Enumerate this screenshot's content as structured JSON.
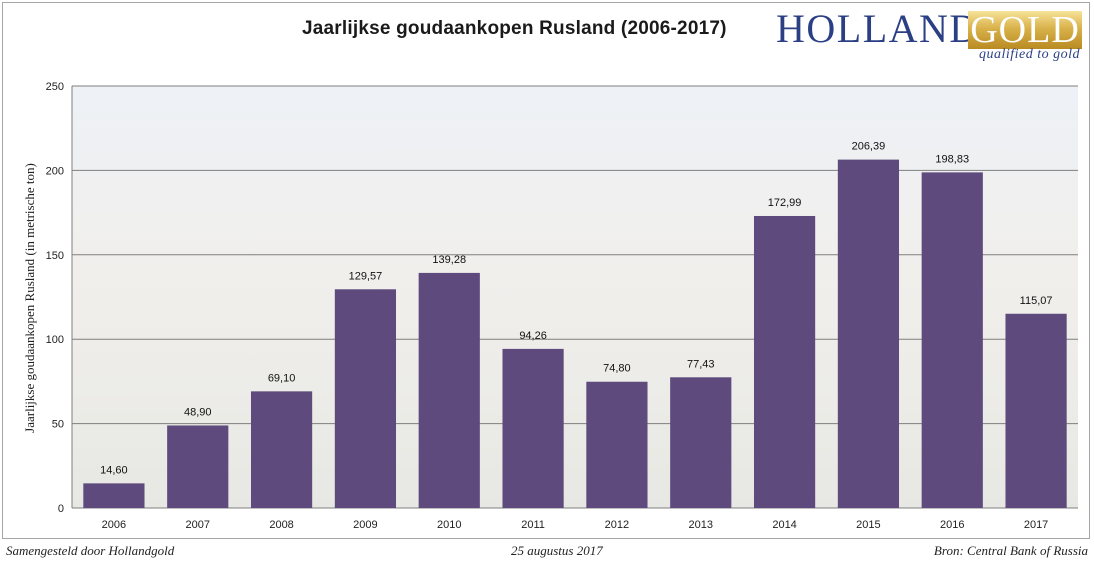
{
  "title": "Jaarlijkse goudaankopen Rusland (2006-2017)",
  "logo": {
    "word1": "HOLLAND",
    "word2": "GOLD",
    "tagline": "qualified to gold"
  },
  "footer": {
    "left": "Samengesteld door Hollandgold",
    "center": "25 augustus 2017",
    "right": "Bron: Central Bank of Russia"
  },
  "colors": {
    "bar": "#5e4a7c",
    "gridline": "#7f7f7f",
    "axis": "#7f7f7f",
    "background_tint": "#e9ecf1"
  },
  "chart_data": {
    "type": "bar",
    "title": "Jaarlijkse goudaankopen Rusland (2006-2017)",
    "xlabel": "",
    "ylabel": "Jaarlijkse goudaankopen Rusland (in metrische ton)",
    "categories": [
      "2006",
      "2007",
      "2008",
      "2009",
      "2010",
      "2011",
      "2012",
      "2013",
      "2014",
      "2015",
      "2016",
      "2017"
    ],
    "values": [
      14.6,
      48.9,
      69.1,
      129.57,
      139.28,
      94.26,
      74.8,
      77.43,
      172.99,
      206.39,
      198.83,
      115.07
    ],
    "value_labels": [
      "14,60",
      "48,90",
      "69,10",
      "129,57",
      "139,28",
      "94,26",
      "74,80",
      "77,43",
      "172,99",
      "206,39",
      "198,83",
      "115,07"
    ],
    "ylim": [
      0,
      250
    ],
    "yticks": [
      0,
      50,
      100,
      150,
      200,
      250
    ],
    "grid": true,
    "legend": "none"
  }
}
